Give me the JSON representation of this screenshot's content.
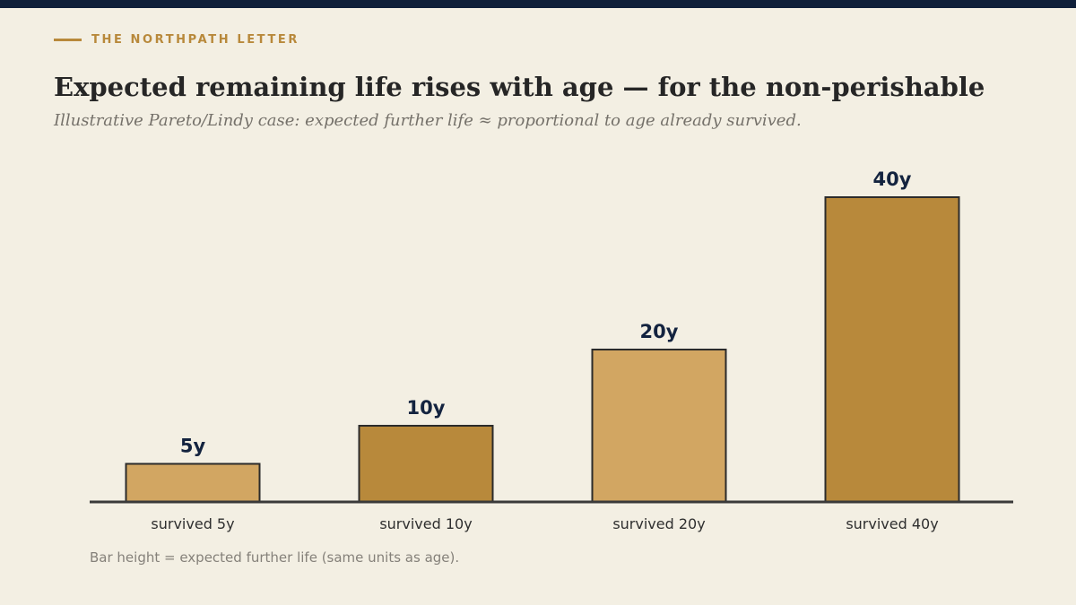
{
  "brand": {
    "name": "THE NORTHPATH LETTER"
  },
  "header": {
    "title": "Expected remaining life rises with age — for the non-perishable",
    "subtitle": "Illustrative Pareto/Lindy case: expected further life ≈ proportional to age already survived."
  },
  "colors": {
    "top_bar": "#0f1f3a",
    "brand_accent": "#b8893b",
    "background": "#f3efe3",
    "bar_light": "#d2a662",
    "bar_dark": "#b8893b",
    "bar_stroke": "#2b2b2b",
    "value_label": "#13233f",
    "axis": "#3a3a3a"
  },
  "chart_data": {
    "type": "bar",
    "categories": [
      "survived 5y",
      "survived 10y",
      "survived 20y",
      "survived 40y"
    ],
    "values": [
      5,
      10,
      20,
      40
    ],
    "value_labels": [
      "5y",
      "10y",
      "20y",
      "40y"
    ],
    "ylim": [
      0,
      40
    ],
    "grid": false,
    "legend": "none",
    "xlabel": "",
    "ylabel": ""
  },
  "footnote": "Bar height = expected further life (same units as age)."
}
